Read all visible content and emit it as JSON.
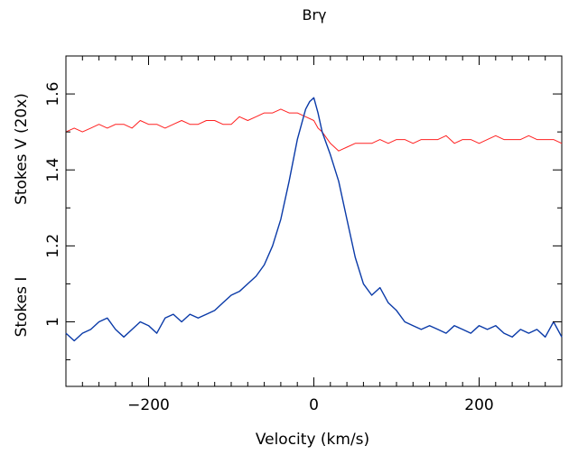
{
  "chart_data": {
    "type": "line",
    "title": "Brγ",
    "xlabel": "Velocity (km/s)",
    "ylabel_upper": "Stokes V (20x)",
    "ylabel_lower": "Stokes I",
    "xlim": [
      -300,
      300
    ],
    "ylim": [
      0.83,
      1.7
    ],
    "xticks": [
      -200,
      0,
      200
    ],
    "xtick_labels": [
      "−200",
      "0",
      "200"
    ],
    "yticks": [
      1.0,
      1.2,
      1.4,
      1.6
    ],
    "ytick_labels": [
      "1",
      "1.2",
      "1.4",
      "1.6"
    ],
    "grid": false,
    "series": [
      {
        "color": "#ff2020",
        "x": [
          -300,
          -290,
          -280,
          -270,
          -260,
          -250,
          -240,
          -230,
          -220,
          -210,
          -200,
          -190,
          -180,
          -170,
          -160,
          -150,
          -140,
          -130,
          -120,
          -110,
          -100,
          -90,
          -80,
          -70,
          -60,
          -50,
          -40,
          -30,
          -20,
          -10,
          0,
          5,
          10,
          20,
          30,
          40,
          50,
          60,
          70,
          80,
          90,
          100,
          110,
          120,
          130,
          140,
          150,
          160,
          170,
          180,
          190,
          200,
          210,
          220,
          230,
          240,
          250,
          260,
          270,
          280,
          290,
          300
        ],
        "y": [
          1.5,
          1.51,
          1.5,
          1.51,
          1.52,
          1.51,
          1.52,
          1.52,
          1.51,
          1.53,
          1.52,
          1.52,
          1.51,
          1.52,
          1.53,
          1.52,
          1.52,
          1.53,
          1.53,
          1.52,
          1.52,
          1.54,
          1.53,
          1.54,
          1.55,
          1.55,
          1.56,
          1.55,
          1.55,
          1.54,
          1.53,
          1.51,
          1.5,
          1.47,
          1.45,
          1.46,
          1.47,
          1.47,
          1.47,
          1.48,
          1.47,
          1.48,
          1.48,
          1.47,
          1.48,
          1.48,
          1.48,
          1.49,
          1.47,
          1.48,
          1.48,
          1.47,
          1.48,
          1.49,
          1.48,
          1.48,
          1.48,
          1.49,
          1.48,
          1.48,
          1.48,
          1.47
        ]
      },
      {
        "color": "#0a3aa8",
        "x": [
          -300,
          -290,
          -280,
          -270,
          -260,
          -250,
          -240,
          -230,
          -220,
          -210,
          -200,
          -190,
          -180,
          -170,
          -160,
          -150,
          -140,
          -130,
          -120,
          -110,
          -100,
          -90,
          -80,
          -70,
          -60,
          -50,
          -40,
          -30,
          -20,
          -10,
          -5,
          0,
          5,
          10,
          20,
          30,
          40,
          50,
          60,
          70,
          80,
          90,
          100,
          110,
          120,
          130,
          140,
          150,
          160,
          170,
          180,
          190,
          200,
          210,
          220,
          230,
          240,
          250,
          260,
          270,
          280,
          290,
          300
        ],
        "y": [
          0.97,
          0.95,
          0.97,
          0.98,
          1.0,
          1.01,
          0.98,
          0.96,
          0.98,
          1.0,
          0.99,
          0.97,
          1.01,
          1.02,
          1.0,
          1.02,
          1.01,
          1.02,
          1.03,
          1.05,
          1.07,
          1.08,
          1.1,
          1.12,
          1.15,
          1.2,
          1.27,
          1.37,
          1.48,
          1.56,
          1.58,
          1.59,
          1.55,
          1.5,
          1.44,
          1.37,
          1.27,
          1.17,
          1.1,
          1.07,
          1.09,
          1.05,
          1.03,
          1.0,
          0.99,
          0.98,
          0.99,
          0.98,
          0.97,
          0.99,
          0.98,
          0.97,
          0.99,
          0.98,
          0.99,
          0.97,
          0.96,
          0.98,
          0.97,
          0.98,
          0.96,
          1.0,
          0.96
        ]
      }
    ]
  }
}
